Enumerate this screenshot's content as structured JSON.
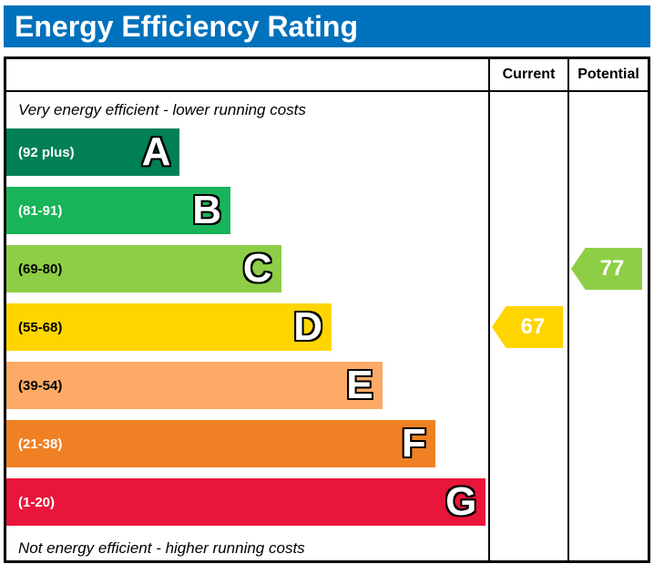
{
  "header": {
    "title": "Energy Efficiency Rating",
    "background_color": "#0071bc"
  },
  "columns": {
    "current_label": "Current",
    "potential_label": "Potential"
  },
  "notes": {
    "top": "Very energy efficient - lower running costs",
    "bottom": "Not energy efficient - higher running costs"
  },
  "bands": [
    {
      "letter": "A",
      "range": "(92 plus)",
      "color": "#008054",
      "text_color": "#ffffff",
      "width": "36%"
    },
    {
      "letter": "B",
      "range": "(81-91)",
      "color": "#19b459",
      "text_color": "#ffffff",
      "width": "46.5%"
    },
    {
      "letter": "C",
      "range": "(69-80)",
      "color": "#8dce46",
      "text_color": "#000000",
      "width": "57%"
    },
    {
      "letter": "D",
      "range": "(55-68)",
      "color": "#ffd500",
      "text_color": "#000000",
      "width": "67.5%"
    },
    {
      "letter": "E",
      "range": "(39-54)",
      "color": "#fcaa65",
      "text_color": "#000000",
      "width": "78%"
    },
    {
      "letter": "F",
      "range": "(21-38)",
      "color": "#ef8023",
      "text_color": "#ffffff",
      "width": "89%"
    },
    {
      "letter": "G",
      "range": "(1-20)",
      "color": "#e9153b",
      "text_color": "#ffffff",
      "width": "99.5%"
    }
  ],
  "ratings": {
    "current": {
      "value": "67",
      "band": "D",
      "band_index": 3,
      "color": "#ffd500"
    },
    "potential": {
      "value": "77",
      "band": "C",
      "band_index": 2,
      "color": "#8dce46"
    }
  },
  "chart_data": {
    "type": "bar",
    "title": "Energy Efficiency Rating",
    "categories": [
      "A",
      "B",
      "C",
      "D",
      "E",
      "F",
      "G"
    ],
    "band_ranges": [
      "92 plus",
      "81-91",
      "69-80",
      "55-68",
      "39-54",
      "21-38",
      "1-20"
    ],
    "band_colors": [
      "#008054",
      "#19b459",
      "#8dce46",
      "#ffd500",
      "#fcaa65",
      "#ef8023",
      "#e9153b"
    ],
    "series": [
      {
        "name": "Current",
        "value": 67,
        "band": "D"
      },
      {
        "name": "Potential",
        "value": 77,
        "band": "C"
      }
    ],
    "annotations": [
      "Very energy efficient - lower running costs",
      "Not energy efficient - higher running costs"
    ],
    "legend_position": "none",
    "grid": false
  }
}
